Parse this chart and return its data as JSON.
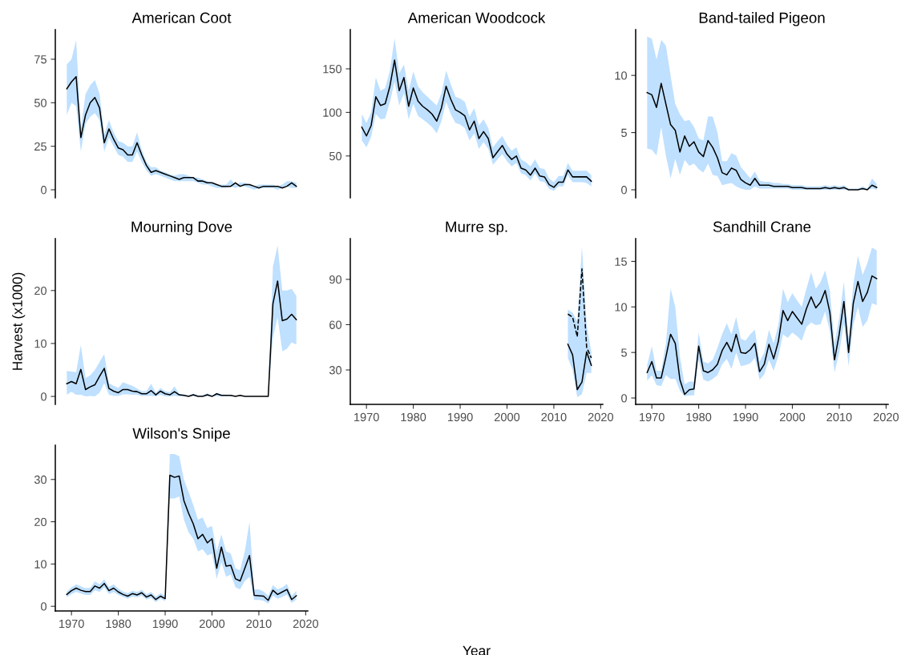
{
  "chart_data": [
    {
      "type": "line",
      "title": "American Coot",
      "tick_labels": "y",
      "ylim": [
        -4.6,
        92
      ],
      "yticks": [
        0,
        25,
        50,
        75
      ],
      "x": [
        1969,
        1970,
        1971,
        1972,
        1973,
        1974,
        1975,
        1976,
        1977,
        1978,
        1979,
        1980,
        1981,
        1982,
        1983,
        1984,
        1985,
        1986,
        1987,
        1988,
        1989,
        1990,
        1991,
        1992,
        1993,
        1994,
        1995,
        1996,
        1997,
        1998,
        1999,
        2000,
        2001,
        2002,
        2003,
        2004,
        2005,
        2006,
        2007,
        2008,
        2009,
        2010,
        2011,
        2012,
        2013,
        2014,
        2015,
        2016,
        2017,
        2018
      ],
      "series": [
        {
          "color": "#000000",
          "line_style": "solid",
          "values": [
            58,
            62,
            65,
            30,
            43,
            50,
            53,
            47,
            27,
            35,
            29,
            24,
            23,
            20,
            20,
            27,
            20,
            14,
            10,
            11,
            10,
            9,
            8,
            7,
            6,
            7,
            7,
            7,
            5,
            5,
            4,
            4,
            3,
            2,
            2,
            2,
            4,
            2,
            3,
            3,
            2,
            1,
            2,
            2,
            2,
            2,
            1,
            2,
            4,
            2
          ],
          "upper": [
            72,
            75,
            86,
            35,
            55,
            60,
            63,
            55,
            32,
            40,
            33,
            28,
            27,
            25,
            25,
            33,
            23,
            16,
            13,
            13,
            11,
            10,
            9,
            8,
            9,
            9,
            8,
            7,
            7,
            6,
            5,
            4,
            3,
            3,
            3,
            6,
            3,
            4,
            4,
            3,
            2,
            3,
            3,
            3,
            3,
            2,
            3,
            5,
            5,
            4
          ],
          "lower": [
            43,
            50,
            48,
            22,
            38,
            42,
            44,
            40,
            22,
            30,
            25,
            20,
            19,
            16,
            16,
            22,
            16,
            11,
            8,
            9,
            8,
            7,
            6,
            5,
            5,
            5,
            5,
            5,
            4,
            3,
            3,
            2,
            1,
            1,
            1,
            2,
            1,
            2,
            2,
            1,
            0,
            1,
            1,
            1,
            1,
            0,
            1,
            2,
            1,
            1
          ]
        }
      ]
    },
    {
      "type": "line",
      "title": "American Woodcock",
      "tick_labels": "y",
      "ylim": [
        2,
        195
      ],
      "yticks": [
        50,
        100,
        150
      ],
      "x": [
        1969,
        1970,
        1971,
        1972,
        1973,
        1974,
        1975,
        1976,
        1977,
        1978,
        1979,
        1980,
        1981,
        1982,
        1983,
        1984,
        1985,
        1986,
        1987,
        1988,
        1989,
        1990,
        1991,
        1992,
        1993,
        1994,
        1995,
        1996,
        1997,
        1998,
        1999,
        2000,
        2001,
        2002,
        2003,
        2004,
        2005,
        2006,
        2007,
        2008,
        2009,
        2010,
        2011,
        2012,
        2013,
        2014,
        2015,
        2016,
        2017,
        2018
      ],
      "series": [
        {
          "color": "#000000",
          "line_style": "solid",
          "values": [
            83,
            73,
            85,
            118,
            108,
            110,
            130,
            160,
            125,
            140,
            107,
            128,
            113,
            107,
            103,
            98,
            90,
            105,
            130,
            115,
            103,
            100,
            96,
            80,
            90,
            70,
            78,
            70,
            48,
            55,
            62,
            52,
            46,
            50,
            36,
            34,
            28,
            36,
            27,
            26,
            17,
            14,
            20,
            20,
            34,
            26,
            26,
            26,
            26,
            21
          ],
          "upper": [
            98,
            88,
            100,
            140,
            125,
            128,
            148,
            185,
            145,
            155,
            125,
            147,
            130,
            123,
            118,
            113,
            108,
            122,
            148,
            132,
            118,
            116,
            112,
            95,
            105,
            85,
            92,
            82,
            60,
            67,
            73,
            63,
            56,
            60,
            46,
            43,
            38,
            46,
            36,
            35,
            24,
            20,
            27,
            27,
            42,
            33,
            33,
            33,
            33,
            28
          ],
          "lower": [
            68,
            60,
            72,
            98,
            92,
            93,
            112,
            135,
            108,
            122,
            92,
            110,
            96,
            92,
            88,
            83,
            76,
            90,
            112,
            98,
            88,
            86,
            82,
            68,
            76,
            58,
            66,
            58,
            40,
            46,
            52,
            44,
            38,
            42,
            30,
            28,
            22,
            30,
            21,
            20,
            12,
            10,
            15,
            15,
            28,
            20,
            20,
            20,
            19,
            15
          ]
        }
      ]
    },
    {
      "type": "line",
      "title": "Band-tailed Pigeon",
      "tick_labels": "y",
      "ylim": [
        -0.7,
        14
      ],
      "yticks": [
        0,
        5,
        10
      ],
      "x": [
        1969,
        1970,
        1971,
        1972,
        1973,
        1974,
        1975,
        1976,
        1977,
        1978,
        1979,
        1980,
        1981,
        1982,
        1983,
        1984,
        1985,
        1986,
        1987,
        1988,
        1989,
        1990,
        1991,
        1992,
        1993,
        1994,
        1995,
        1996,
        1997,
        1998,
        1999,
        2000,
        2001,
        2002,
        2003,
        2004,
        2005,
        2006,
        2007,
        2008,
        2009,
        2010,
        2011,
        2012,
        2013,
        2014,
        2015,
        2016,
        2017,
        2018
      ],
      "series": [
        {
          "color": "#000000",
          "line_style": "solid",
          "values": [
            8.5,
            8.3,
            7.2,
            9.3,
            7.5,
            5.7,
            5.2,
            3.3,
            4.7,
            3.8,
            4.2,
            3.3,
            2.9,
            4.3,
            3.7,
            2.8,
            1.5,
            1.3,
            1.9,
            1.7,
            0.9,
            0.6,
            0.4,
            1.0,
            0.4,
            0.4,
            0.4,
            0.3,
            0.3,
            0.3,
            0.3,
            0.2,
            0.2,
            0.2,
            0.1,
            0.1,
            0.1,
            0.1,
            0.2,
            0.1,
            0.2,
            0.1,
            0.2,
            0.0,
            0.0,
            0.0,
            0.1,
            0.0,
            0.4,
            0.2
          ],
          "upper": [
            13.4,
            13.2,
            11.4,
            13.1,
            12.6,
            10.0,
            7.5,
            6.6,
            6.0,
            6.1,
            5.5,
            4.5,
            4.3,
            6.4,
            6.4,
            5.0,
            2.5,
            2.5,
            3.2,
            3.0,
            2.0,
            1.5,
            1.0,
            1.6,
            0.8,
            0.7,
            0.7,
            0.6,
            0.6,
            0.5,
            0.5,
            0.4,
            0.4,
            0.4,
            0.3,
            0.3,
            0.3,
            0.3,
            0.4,
            0.3,
            0.4,
            0.3,
            0.4,
            0.1,
            0.1,
            0.1,
            0.3,
            0.1,
            1.0,
            0.5
          ],
          "lower": [
            3.6,
            3.5,
            3.0,
            5.5,
            3.0,
            1.0,
            2.7,
            1.3,
            2.6,
            2.1,
            2.3,
            1.8,
            1.5,
            2.3,
            1.3,
            1.2,
            0.4,
            0.5,
            0.6,
            0.3,
            0.1,
            0.0,
            0.0,
            0.3,
            0.1,
            0.1,
            0.1,
            0.1,
            0.1,
            0.1,
            0.1,
            0.0,
            0.0,
            0.0,
            0.0,
            0.0,
            0.0,
            0.0,
            0.0,
            0.0,
            0.0,
            0.0,
            0.0,
            0.0,
            0.0,
            0.0,
            0.0,
            0.0,
            0.1,
            0.0
          ]
        }
      ]
    },
    {
      "type": "line",
      "title": "Mourning Dove",
      "ylabel": "Harvest (x1000)",
      "tick_labels": "y",
      "ylim": [
        -1.5,
        29.8
      ],
      "yticks": [
        0,
        10,
        20
      ],
      "x": [
        1969,
        1970,
        1971,
        1972,
        1973,
        1974,
        1975,
        1976,
        1977,
        1978,
        1979,
        1980,
        1981,
        1982,
        1983,
        1984,
        1985,
        1986,
        1987,
        1988,
        1989,
        1990,
        1991,
        1992,
        1993,
        1994,
        1995,
        1996,
        1997,
        1998,
        1999,
        2000,
        2001,
        2002,
        2003,
        2004,
        2005,
        2006,
        2007,
        2008,
        2009,
        2010,
        2011,
        2012,
        2013,
        2014,
        2015,
        2016,
        2017,
        2018
      ],
      "series": [
        {
          "color": "#000000",
          "line_style": "solid",
          "values": [
            2.4,
            2.8,
            2.4,
            5.1,
            1.3,
            1.8,
            2.2,
            3.8,
            5.3,
            1.5,
            1.0,
            0.7,
            1.3,
            1.3,
            1.0,
            0.9,
            0.5,
            0.5,
            1.1,
            0.3,
            1.0,
            0.5,
            0.3,
            0.9,
            0.3,
            0.2,
            0.0,
            0.3,
            0.0,
            0.0,
            0.3,
            0.0,
            0.5,
            0.2,
            0.2,
            0.2,
            0.0,
            0.2,
            0.0,
            0.0,
            0.0,
            0.0,
            0.0,
            0.0,
            17.5,
            21.8,
            14.3,
            14.6,
            15.5,
            14.5
          ],
          "upper": [
            4.8,
            4.7,
            4.6,
            9.7,
            3.5,
            4.0,
            5.0,
            6.5,
            8.0,
            2.5,
            2.0,
            1.6,
            2.7,
            2.3,
            2.0,
            1.5,
            1.0,
            1.0,
            2.4,
            0.7,
            1.6,
            1.0,
            0.8,
            1.9,
            0.5,
            0.4,
            0.2,
            0.5,
            0.2,
            0.2,
            0.6,
            0.1,
            0.7,
            0.4,
            0.3,
            0.3,
            0.1,
            0.3,
            0.1,
            0.1,
            0.1,
            0.1,
            0.1,
            0.1,
            24.5,
            28.5,
            20.0,
            20.0,
            20.3,
            19.0
          ],
          "lower": [
            0.3,
            0.9,
            0.3,
            0.3,
            0.0,
            0.1,
            0.0,
            0.7,
            2.5,
            0.3,
            0.1,
            0.1,
            0.4,
            0.4,
            0.3,
            0.3,
            0.1,
            0.1,
            0.1,
            0.0,
            0.3,
            0.0,
            0.0,
            0.1,
            0.0,
            0.0,
            0.0,
            0.0,
            0.0,
            0.0,
            0.0,
            0.0,
            0.0,
            0.0,
            0.0,
            0.0,
            0.0,
            0.0,
            0.0,
            0.0,
            0.0,
            0.0,
            0.0,
            0.0,
            11.0,
            15.0,
            8.5,
            9.0,
            10.2,
            9.8
          ]
        }
      ]
    },
    {
      "type": "line",
      "title": "Murre sp.",
      "xlabel": "Year",
      "xlim": [
        1966.55,
        2020.45
      ],
      "xticks": [
        1970,
        1980,
        1990,
        2000,
        2010,
        2020
      ],
      "ylim": [
        7.2,
        117
      ],
      "yticks": [
        30,
        60,
        90
      ],
      "x": [
        2013,
        2014,
        2015,
        2016,
        2017,
        2018
      ],
      "series": [
        {
          "color": "#000000",
          "line_style": "solid",
          "values": [
            47,
            40,
            17,
            22,
            42,
            33
          ],
          "upper": [
            70,
            68,
            62,
            112,
            60,
            42
          ],
          "lower": [
            38,
            30,
            12,
            14,
            28,
            28
          ]
        },
        {
          "color": "#000000",
          "line_style": "dashed",
          "values": [
            67,
            65,
            52,
            97,
            45,
            38
          ]
        }
      ]
    },
    {
      "type": "line",
      "title": "Sandhill Crane",
      "xlim": [
        1966.55,
        2020.45
      ],
      "xticks": [
        1970,
        1980,
        1990,
        2000,
        2010,
        2020
      ],
      "ylim": [
        -0.7,
        17.5
      ],
      "yticks": [
        0,
        5,
        10,
        15
      ],
      "x": [
        1969,
        1970,
        1971,
        1972,
        1973,
        1974,
        1975,
        1976,
        1977,
        1978,
        1979,
        1980,
        1981,
        1982,
        1983,
        1984,
        1985,
        1986,
        1987,
        1988,
        1989,
        1990,
        1991,
        1992,
        1993,
        1994,
        1995,
        1996,
        1997,
        1998,
        1999,
        2000,
        2001,
        2002,
        2003,
        2004,
        2005,
        2006,
        2007,
        2008,
        2009,
        2010,
        2011,
        2012,
        2013,
        2014,
        2015,
        2016,
        2017,
        2018
      ],
      "series": [
        {
          "color": "#000000",
          "line_style": "solid",
          "values": [
            2.8,
            4.0,
            2.2,
            2.2,
            4.5,
            7.0,
            6.0,
            2.0,
            0.4,
            0.9,
            1.0,
            5.7,
            3.0,
            2.8,
            3.1,
            3.7,
            5.2,
            6.1,
            5.1,
            7.0,
            5.0,
            4.9,
            5.3,
            6.0,
            2.9,
            3.7,
            5.9,
            4.3,
            6.2,
            9.6,
            8.5,
            9.5,
            8.8,
            8.1,
            9.8,
            11.1,
            9.9,
            10.5,
            11.8,
            9.4,
            4.2,
            7.0,
            10.6,
            5.0,
            10.4,
            12.8,
            10.6,
            11.6,
            13.4,
            13.1
          ],
          "upper": [
            3.6,
            5.7,
            3.0,
            3.0,
            6.0,
            12.0,
            10.0,
            4.5,
            1.5,
            1.8,
            1.8,
            7.2,
            4.0,
            3.8,
            4.2,
            5.5,
            7.0,
            8.2,
            7.0,
            8.9,
            6.5,
            6.3,
            7.0,
            7.5,
            4.0,
            5.0,
            7.5,
            6.0,
            8.0,
            12.0,
            10.5,
            11.5,
            10.7,
            10.0,
            12.0,
            13.8,
            12.0,
            12.7,
            14.0,
            11.8,
            6.0,
            8.8,
            12.8,
            6.5,
            12.5,
            15.6,
            13.5,
            14.8,
            16.5,
            16.2
          ],
          "lower": [
            1.9,
            2.5,
            1.4,
            1.3,
            2.5,
            2.1,
            2.1,
            0.8,
            0.2,
            0.3,
            0.3,
            4.2,
            2.0,
            1.8,
            2.1,
            2.5,
            3.7,
            4.3,
            3.2,
            5.0,
            3.5,
            3.6,
            3.8,
            4.4,
            2.0,
            2.6,
            4.2,
            3.0,
            4.6,
            7.0,
            6.6,
            7.2,
            6.8,
            6.3,
            7.8,
            8.3,
            8.0,
            8.1,
            9.5,
            7.3,
            2.8,
            5.0,
            8.2,
            3.5,
            8.0,
            10.0,
            7.8,
            8.5,
            10.4,
            10.2
          ]
        }
      ]
    },
    {
      "type": "line",
      "title": "Wilson's Snipe",
      "xlim": [
        1966.55,
        2020.45
      ],
      "xticks": [
        1970,
        1980,
        1990,
        2000,
        2010,
        2020
      ],
      "ylim": [
        -1.1,
        38.1
      ],
      "yticks": [
        0,
        10,
        20,
        30
      ],
      "x": [
        1969,
        1970,
        1971,
        1972,
        1973,
        1974,
        1975,
        1976,
        1977,
        1978,
        1979,
        1980,
        1981,
        1982,
        1983,
        1984,
        1985,
        1986,
        1987,
        1988,
        1989,
        1990,
        1991,
        1992,
        1993,
        1994,
        1995,
        1996,
        1997,
        1998,
        1999,
        2000,
        2001,
        2002,
        2003,
        2004,
        2005,
        2006,
        2007,
        2008,
        2009,
        2010,
        2011,
        2012,
        2013,
        2014,
        2015,
        2016,
        2017,
        2018
      ],
      "series": [
        {
          "color": "#000000",
          "line_style": "solid",
          "values": [
            2.8,
            3.7,
            4.3,
            3.8,
            3.5,
            3.5,
            4.8,
            4.3,
            5.4,
            3.7,
            4.3,
            3.4,
            2.8,
            2.4,
            3.0,
            2.7,
            3.2,
            2.2,
            2.7,
            1.6,
            2.4,
            1.8,
            31,
            30.5,
            30.8,
            25,
            22,
            19.5,
            16,
            17,
            15,
            16,
            9,
            14,
            9.5,
            9.7,
            6.5,
            6,
            9,
            12,
            2.6,
            2.5,
            2.4,
            1.4,
            3.8,
            2.8,
            3.4,
            4.0,
            1.6,
            2.5
          ],
          "upper": [
            3.5,
            4.5,
            5.2,
            4.7,
            4.3,
            4.4,
            5.9,
            5.2,
            6.4,
            4.6,
            5.2,
            4.2,
            3.5,
            3.1,
            3.7,
            3.4,
            3.9,
            2.9,
            3.4,
            2.3,
            3.1,
            2.5,
            36,
            36,
            35.5,
            30,
            27,
            24,
            20.5,
            21,
            18.5,
            19,
            13,
            17,
            13,
            12.5,
            9,
            8.5,
            13,
            20,
            4,
            4,
            3.5,
            2.5,
            5,
            4,
            4.5,
            5.3,
            2.5,
            3.7
          ],
          "lower": [
            2.1,
            2.9,
            3.4,
            3.0,
            2.7,
            2.7,
            3.8,
            3.4,
            4.5,
            2.9,
            3.4,
            2.7,
            2.2,
            1.8,
            2.3,
            2.1,
            2.5,
            1.6,
            2.0,
            1.0,
            1.8,
            1.2,
            25.5,
            25.5,
            26,
            20.5,
            17.5,
            16,
            13,
            13.5,
            12,
            12.5,
            6.5,
            10.5,
            7,
            7.5,
            4.5,
            4,
            6,
            7,
            1.5,
            1.5,
            1.3,
            0.6,
            2.5,
            1.8,
            2.2,
            2.8,
            0.8,
            1.6
          ]
        }
      ]
    }
  ]
}
